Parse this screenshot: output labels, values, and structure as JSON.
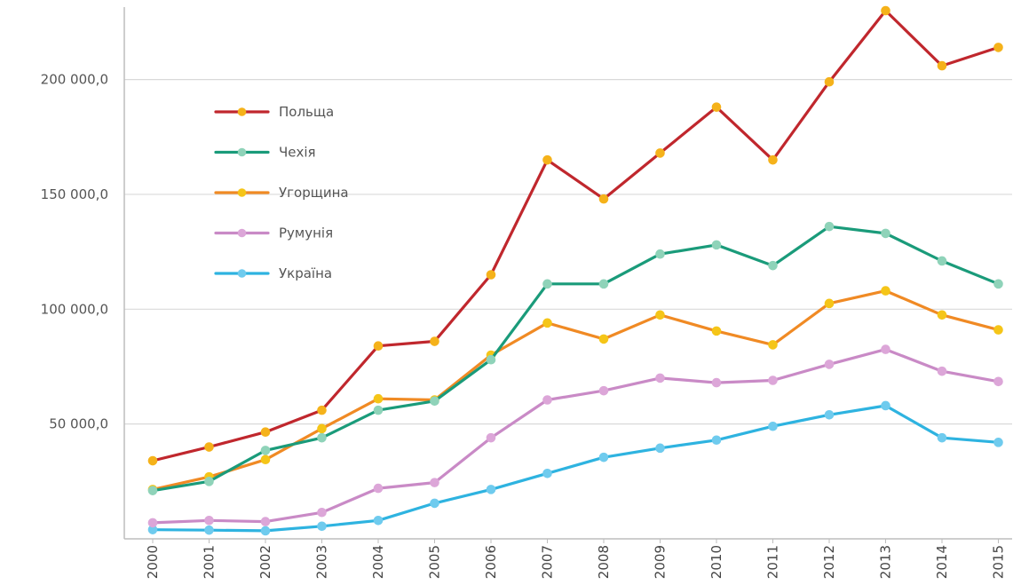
{
  "chart_data": {
    "type": "line",
    "x": [
      "2000",
      "2001",
      "2002",
      "2003",
      "2004",
      "2005",
      "2006",
      "2007",
      "2008",
      "2009",
      "2010",
      "2011",
      "2012",
      "2013",
      "2014",
      "2015"
    ],
    "ylim": [
      0,
      230000
    ],
    "yticks": [
      {
        "value": 50000,
        "label": "50 000,0"
      },
      {
        "value": 100000,
        "label": "100 000,0"
      },
      {
        "value": 150000,
        "label": "150 000,0"
      },
      {
        "value": 200000,
        "label": "200 000,0"
      }
    ],
    "grid": true,
    "legend_position": "top-left",
    "series": [
      {
        "name": "Польща",
        "line_color": "#c0272d",
        "marker_color": "#f5b21a",
        "values": [
          34000,
          40000,
          46500,
          56000,
          84000,
          86000,
          115000,
          165000,
          148000,
          168000,
          188000,
          165000,
          199000,
          230000,
          206000,
          214000
        ]
      },
      {
        "name": "Чехія",
        "line_color": "#1a9b7a",
        "marker_color": "#8fd3b9",
        "values": [
          21000,
          25000,
          38500,
          44000,
          56000,
          60000,
          78000,
          111000,
          111000,
          124000,
          128000,
          119000,
          136000,
          133000,
          121000,
          111000
        ]
      },
      {
        "name": "Угорщина",
        "line_color": "#f08a24",
        "marker_color": "#f5c518",
        "values": [
          21500,
          27000,
          34500,
          48000,
          61000,
          60500,
          80000,
          94000,
          87000,
          97500,
          90500,
          84500,
          102500,
          108000,
          97500,
          91000
        ]
      },
      {
        "name": "Румунія",
        "line_color": "#c98ac6",
        "marker_color": "#dca6d8",
        "values": [
          7000,
          8000,
          7500,
          11500,
          22000,
          24500,
          44000,
          60500,
          64500,
          70000,
          68000,
          69000,
          76000,
          82500,
          73000,
          68500
        ]
      },
      {
        "name": "Україна",
        "line_color": "#2eb3e0",
        "marker_color": "#6fcbee",
        "values": [
          4000,
          3800,
          3500,
          5500,
          8000,
          15500,
          21500,
          28500,
          35500,
          39500,
          43000,
          49000,
          54000,
          58000,
          44000,
          42000
        ]
      }
    ]
  }
}
